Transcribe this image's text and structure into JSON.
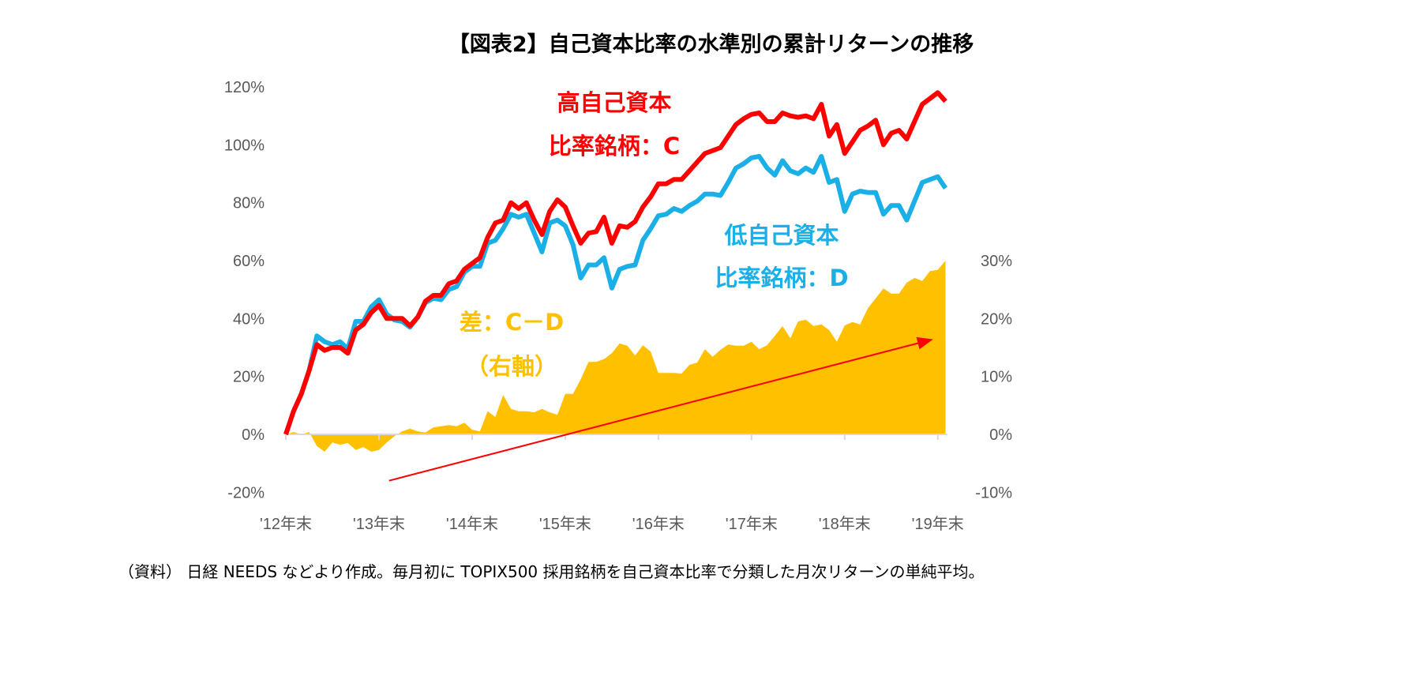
{
  "chart_data": {
    "type": "line",
    "title": "【図表2】自己資本比率の水準別の累計リターンの推移",
    "source_note": "（資料） 日経 NEEDS などより作成。毎月初に TOPIX500 採用銘柄を自己資本比率で分類した月次リターンの単純平均。",
    "x_tick_labels": [
      "'12年末",
      "'13年末",
      "'14年末",
      "'15年末",
      "'16年末",
      "'17年末",
      "'18年末",
      "'19年末"
    ],
    "x_unit": "months since '12年末 (monthly)",
    "left_axis": {
      "ticks": [
        "-20%",
        "0%",
        "20%",
        "40%",
        "60%",
        "80%",
        "100%",
        "120%"
      ],
      "range": [
        -20,
        120
      ]
    },
    "right_axis": {
      "ticks": [
        "-10%",
        "0%",
        "10%",
        "20%",
        "30%"
      ],
      "range": [
        -10,
        30
      ]
    },
    "grid": false,
    "series": [
      {
        "name": "高自己資本比率銘柄：C",
        "label_lines": [
          "高自己資本",
          "比率銘柄：C"
        ],
        "axis": "left",
        "kind": "line",
        "color": "#FF0000",
        "values": [
          0,
          8,
          14,
          22,
          31,
          29,
          30,
          30,
          28,
          36,
          38,
          42,
          44.5,
          40,
          40,
          40,
          37.5,
          40.5,
          46,
          48,
          48,
          52,
          53,
          57,
          59,
          61,
          68,
          73,
          74,
          80,
          78,
          80,
          74,
          69,
          77,
          81,
          78.5,
          72,
          66,
          69.5,
          70,
          75,
          66,
          72,
          71.5,
          73.5,
          78.5,
          82,
          86.5,
          86.5,
          88,
          88,
          91,
          94,
          97,
          98,
          99,
          103,
          107,
          109,
          110.5,
          111,
          108,
          108,
          111,
          110,
          109.5,
          110,
          109,
          114,
          103,
          107,
          97,
          101,
          105,
          106.5,
          108.5,
          100,
          104,
          105,
          102,
          108,
          114,
          116,
          118,
          115
        ]
      },
      {
        "name": "低自己資本比率銘柄：D",
        "label_lines": [
          "低自己資本",
          "比率銘柄：D"
        ],
        "axis": "left",
        "kind": "line",
        "color": "#1AAFE6",
        "values": [
          0,
          8,
          14,
          22,
          34,
          32,
          31,
          32,
          29.5,
          39,
          39,
          44,
          46.5,
          41.5,
          39.5,
          39,
          37,
          40.5,
          45.5,
          47,
          46.5,
          50,
          51,
          56,
          58,
          58,
          66,
          67,
          71,
          76,
          75,
          76,
          69.5,
          63,
          73,
          74,
          72,
          65.5,
          54,
          58.5,
          58.5,
          61,
          50.5,
          57,
          58,
          58.5,
          67,
          71,
          75.5,
          76,
          78,
          77,
          79,
          80.5,
          83,
          83,
          82.5,
          87,
          92,
          93.5,
          95.5,
          96,
          92,
          89.5,
          94.5,
          91,
          90,
          92,
          90.5,
          96,
          87,
          88,
          77,
          83,
          84,
          83.5,
          83.5,
          76,
          79,
          79,
          74,
          80.5,
          87,
          88,
          89,
          85
        ]
      },
      {
        "name": "差：C－D",
        "label_lines": [
          "差：C－D",
          "（右軸）"
        ],
        "axis": "right",
        "kind": "area",
        "color": "#FFC000",
        "values": [
          0,
          0.4,
          0,
          0.4,
          -2,
          -3,
          -1.4,
          -1.8,
          -1.5,
          -2.7,
          -2.2,
          -3,
          -2.7,
          -1.4,
          -0.3,
          0.5,
          1,
          0.5,
          0.3,
          1.2,
          1.4,
          1.6,
          1.4,
          2,
          0.8,
          0.5,
          4,
          3,
          6.8,
          4.4,
          4,
          4,
          3.8,
          4.4,
          3.8,
          3.4,
          7,
          7,
          9.5,
          12.5,
          12.5,
          13,
          14,
          15.7,
          15.3,
          13.6,
          15.4,
          14.3,
          10.6,
          10.6,
          10.6,
          10.5,
          12,
          12.4,
          14.7,
          13.4,
          14.6,
          15.5,
          15.3,
          15.3,
          16,
          14.7,
          15.4,
          17,
          18.7,
          16.6,
          19.5,
          19.8,
          18.7,
          19,
          18,
          16,
          18.8,
          19.4,
          19,
          21.8,
          23.5,
          25.2,
          24.3,
          24.3,
          26.2,
          27,
          26.5,
          28.2,
          28.4,
          30
        ]
      }
    ],
    "annotations": [
      {
        "type": "arrow",
        "color": "#FF0000",
        "from": {
          "month": 13.3,
          "left_value": -16
        },
        "to": {
          "month": 83.2,
          "left_value": 32.7
        }
      }
    ],
    "colors": {
      "axis_text": "#595959",
      "axis_line": "#D9D9D9",
      "diff_label": "#FFC000"
    }
  }
}
